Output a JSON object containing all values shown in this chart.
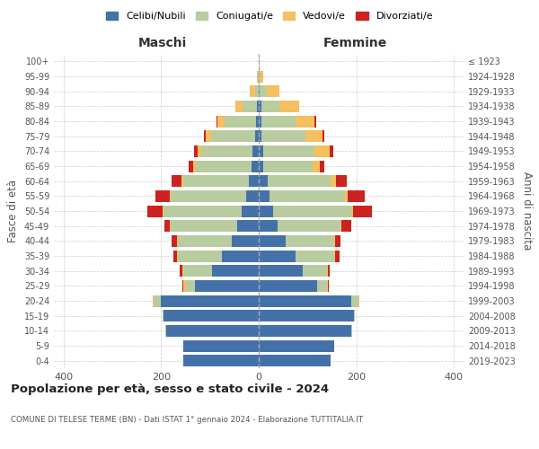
{
  "age_groups": [
    "100+",
    "95-99",
    "90-94",
    "85-89",
    "80-84",
    "75-79",
    "70-74",
    "65-69",
    "60-64",
    "55-59",
    "50-54",
    "45-49",
    "40-44",
    "35-39",
    "30-34",
    "25-29",
    "20-24",
    "15-19",
    "10-14",
    "5-9",
    "0-4"
  ],
  "birth_years": [
    "≤ 1923",
    "1924-1928",
    "1929-1933",
    "1934-1938",
    "1939-1943",
    "1944-1948",
    "1949-1953",
    "1954-1958",
    "1959-1963",
    "1964-1968",
    "1969-1973",
    "1974-1978",
    "1979-1983",
    "1984-1988",
    "1989-1993",
    "1994-1998",
    "1999-2003",
    "2004-2008",
    "2009-2013",
    "2014-2018",
    "2019-2023"
  ],
  "male": {
    "celibi": [
      0,
      0,
      0,
      3,
      5,
      8,
      12,
      14,
      20,
      25,
      35,
      45,
      55,
      75,
      95,
      130,
      200,
      195,
      190,
      155,
      155
    ],
    "coniugati": [
      0,
      2,
      8,
      30,
      65,
      90,
      105,
      115,
      135,
      155,
      160,
      135,
      110,
      90,
      60,
      20,
      15,
      2,
      2,
      0,
      0
    ],
    "vedovi": [
      0,
      2,
      10,
      15,
      15,
      10,
      8,
      5,
      3,
      3,
      3,
      2,
      2,
      2,
      2,
      5,
      2,
      0,
      0,
      0,
      0
    ],
    "divorziati": [
      0,
      0,
      0,
      0,
      2,
      5,
      8,
      10,
      20,
      28,
      30,
      12,
      12,
      8,
      5,
      2,
      0,
      0,
      0,
      0,
      0
    ]
  },
  "female": {
    "nubili": [
      0,
      0,
      2,
      5,
      5,
      5,
      10,
      10,
      18,
      22,
      30,
      38,
      55,
      75,
      90,
      120,
      190,
      195,
      190,
      155,
      148
    ],
    "coniugate": [
      0,
      2,
      15,
      38,
      70,
      90,
      105,
      100,
      130,
      155,
      160,
      130,
      100,
      80,
      50,
      20,
      15,
      2,
      2,
      0,
      0
    ],
    "vedove": [
      1,
      8,
      25,
      40,
      40,
      35,
      30,
      15,
      10,
      5,
      3,
      2,
      2,
      2,
      2,
      2,
      2,
      0,
      0,
      0,
      0
    ],
    "divorziate": [
      0,
      0,
      0,
      0,
      3,
      5,
      8,
      10,
      22,
      35,
      40,
      20,
      10,
      8,
      3,
      2,
      0,
      0,
      0,
      0,
      0
    ]
  },
  "colors": {
    "celibi_nubili": "#4472a8",
    "coniugati": "#b8cca0",
    "vedovi": "#f5c060",
    "divorziati": "#cc2222"
  },
  "title": "Popolazione per età, sesso e stato civile - 2024",
  "subtitle": "COMUNE DI TELESE TERME (BN) - Dati ISTAT 1° gennaio 2024 - Elaborazione TUTTITALIA.IT",
  "xlabel_left": "Maschi",
  "xlabel_right": "Femmine",
  "ylabel_left": "Fasce di età",
  "ylabel_right": "Anni di nascita",
  "xlim": 420,
  "background_color": "#ffffff"
}
